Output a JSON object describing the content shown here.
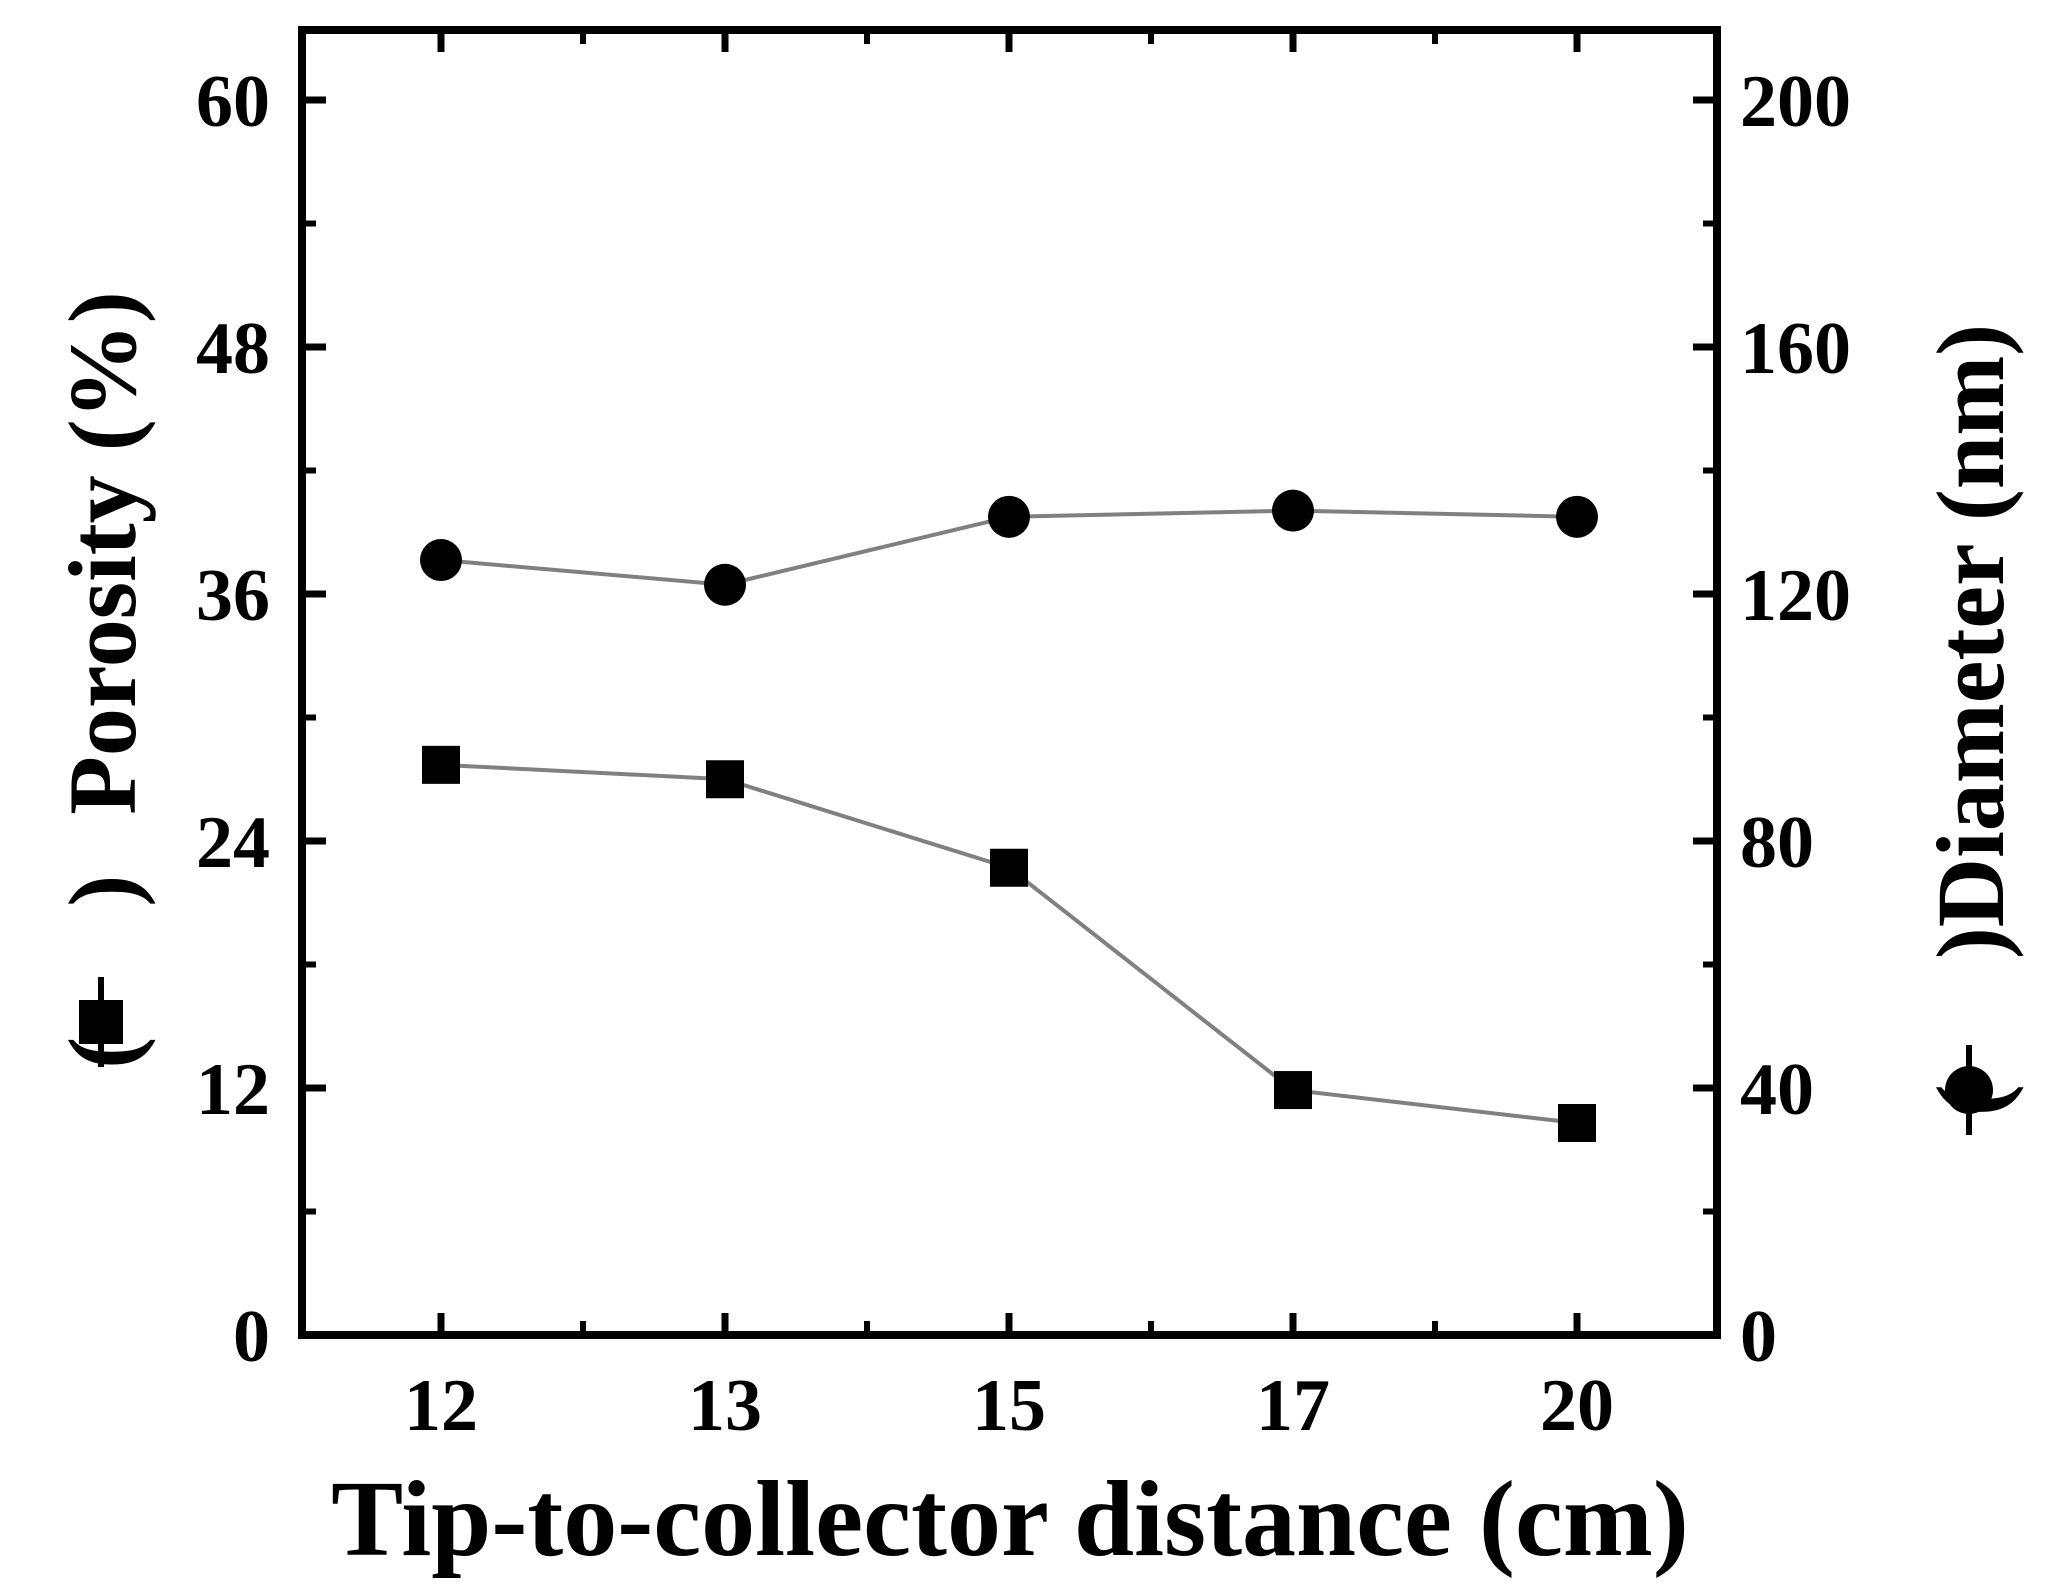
{
  "chart_data": {
    "type": "line",
    "xlabel": "Tip-to-collector distance (cm)",
    "categories": [
      "12",
      "13",
      "15",
      "17",
      "20"
    ],
    "y_left": {
      "label": "Porosity (%)",
      "label_prefix": "(",
      "label_suffix": ")",
      "ylim": [
        0,
        60
      ],
      "ticks": [
        "0",
        "12",
        "24",
        "36",
        "48",
        "60"
      ]
    },
    "y_right": {
      "label": "Diameter (nm)",
      "label_prefix": "(",
      "label_suffix": ")",
      "ylim": [
        0,
        200
      ],
      "ticks": [
        "0",
        "40",
        "80",
        "120",
        "160",
        "200"
      ]
    },
    "series": [
      {
        "axis": "left",
        "marker": "square",
        "values": [
          27.7,
          27.0,
          22.7,
          11.9,
          10.3
        ]
      },
      {
        "axis": "right",
        "marker": "circle",
        "values": [
          125.5,
          121.5,
          132.5,
          133.5,
          132.5
        ]
      }
    ],
    "grid": false,
    "colors": {
      "axis": "#000000",
      "line": "#808080",
      "marker": "#000000"
    }
  }
}
